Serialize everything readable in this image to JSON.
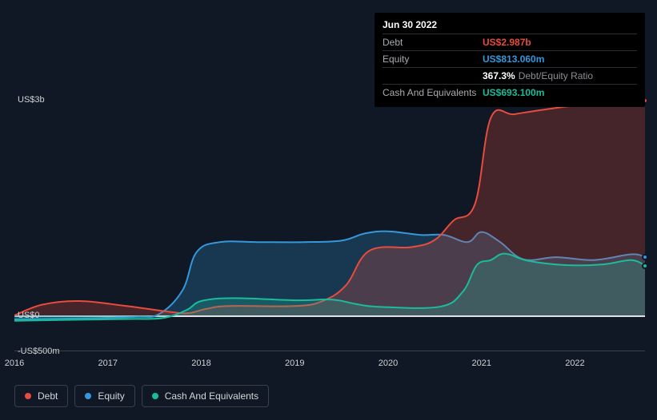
{
  "background_color": "#0f1824",
  "chart": {
    "type": "area",
    "x_years": [
      2016,
      2017,
      2018,
      2019,
      2020,
      2021,
      2022,
      2022.75
    ],
    "x_ticks_labeled": [
      "2016",
      "2017",
      "2018",
      "2019",
      "2020",
      "2021",
      "2022"
    ],
    "y_ticks": [
      {
        "value": 3000,
        "label": "US$3b"
      },
      {
        "value": 0,
        "label": "US$0"
      },
      {
        "value": -500,
        "label": "-US$500m"
      }
    ],
    "ylim_min_million": -500,
    "ylim_max_million": 3000,
    "baseline_value": 0,
    "baseline_color": "#dfe2e6",
    "grid_color": "#3a4048",
    "label_color": "#cfd2d6",
    "label_fontsize_pt": 11,
    "series": {
      "debt": {
        "label": "Debt",
        "stroke": "#e74c3c",
        "fill": "#e74c3c",
        "fill_opacity": 0.25,
        "stroke_width": 2,
        "points_million": [
          [
            2016,
            0
          ],
          [
            2016.3,
            150
          ],
          [
            2016.7,
            200
          ],
          [
            2017.2,
            130
          ],
          [
            2017.6,
            60
          ],
          [
            2017.85,
            30
          ],
          [
            2018.05,
            90
          ],
          [
            2018.3,
            130
          ],
          [
            2019,
            130
          ],
          [
            2019.3,
            200
          ],
          [
            2019.55,
            420
          ],
          [
            2019.8,
            900
          ],
          [
            2020.25,
            950
          ],
          [
            2020.5,
            1050
          ],
          [
            2020.7,
            1320
          ],
          [
            2020.93,
            1550
          ],
          [
            2021.1,
            2750
          ],
          [
            2021.35,
            2800
          ],
          [
            2021.7,
            2870
          ],
          [
            2022.15,
            2940
          ],
          [
            2022.75,
            2987
          ]
        ]
      },
      "equity": {
        "label": "Equity",
        "stroke": "#3498db",
        "fill": "#3498db",
        "fill_opacity": 0.25,
        "stroke_width": 2,
        "points_million": [
          [
            2016,
            -55
          ],
          [
            2016.8,
            -40
          ],
          [
            2017.3,
            -20
          ],
          [
            2017.55,
            20
          ],
          [
            2017.8,
            350
          ],
          [
            2017.95,
            880
          ],
          [
            2018.2,
            1020
          ],
          [
            2018.6,
            1020
          ],
          [
            2019.1,
            1020
          ],
          [
            2019.5,
            1040
          ],
          [
            2019.75,
            1140
          ],
          [
            2020.0,
            1170
          ],
          [
            2020.35,
            1120
          ],
          [
            2020.6,
            1120
          ],
          [
            2020.85,
            1020
          ],
          [
            2021.0,
            1160
          ],
          [
            2021.2,
            1020
          ],
          [
            2021.45,
            780
          ],
          [
            2021.8,
            810
          ],
          [
            2022.2,
            770
          ],
          [
            2022.6,
            850
          ],
          [
            2022.75,
            813
          ]
        ]
      },
      "cash": {
        "label": "Cash And Equivalents",
        "stroke": "#1abc9c",
        "fill": "#1abc9c",
        "fill_opacity": 0.25,
        "stroke_width": 2,
        "points_million": [
          [
            2016,
            -75
          ],
          [
            2016.7,
            -60
          ],
          [
            2017.25,
            -50
          ],
          [
            2017.6,
            -35
          ],
          [
            2017.85,
            80
          ],
          [
            2018.0,
            200
          ],
          [
            2018.35,
            240
          ],
          [
            2019.0,
            210
          ],
          [
            2019.4,
            220
          ],
          [
            2019.65,
            160
          ],
          [
            2019.9,
            120
          ],
          [
            2020.55,
            120
          ],
          [
            2020.8,
            330
          ],
          [
            2020.95,
            700
          ],
          [
            2021.1,
            770
          ],
          [
            2021.25,
            860
          ],
          [
            2021.5,
            760
          ],
          [
            2021.9,
            700
          ],
          [
            2022.3,
            710
          ],
          [
            2022.6,
            770
          ],
          [
            2022.75,
            693
          ]
        ]
      }
    },
    "current_vertical_x": 2022.75,
    "markers_right": {
      "debt": 2987,
      "equity": 813,
      "cash": 693
    }
  },
  "tooltip": {
    "title": "Jun 30 2022",
    "rows": [
      {
        "label": "Debt",
        "value": "US$2.987b",
        "cls": "debt"
      },
      {
        "label": "Equity",
        "value": "US$813.060m",
        "cls": "equity"
      },
      {
        "label": "",
        "value": "367.3%",
        "suffix": "Debt/Equity Ratio",
        "cls": "ratio"
      },
      {
        "label": "Cash And Equivalents",
        "value": "US$693.100m",
        "cls": "cash"
      }
    ]
  },
  "legend": {
    "item_border": "#3a4048",
    "text_color": "#d4d6d8",
    "items": [
      {
        "label": "Debt",
        "color": "#e74c3c"
      },
      {
        "label": "Equity",
        "color": "#3498db"
      },
      {
        "label": "Cash And Equivalents",
        "color": "#1abc9c"
      }
    ]
  }
}
